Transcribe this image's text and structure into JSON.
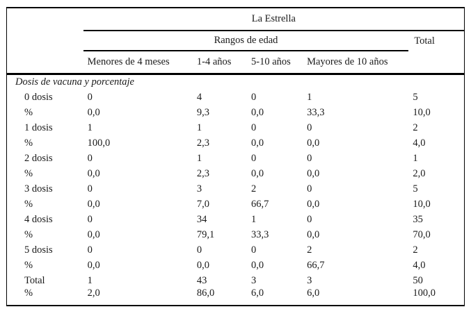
{
  "table": {
    "title": "La Estrella",
    "age_group_header": "Rangos de edad",
    "total_header": "Total",
    "columns": [
      "Menores de 4 meses",
      "1-4 años",
      "5-10 años",
      "Mayores de 10 años"
    ],
    "section_label": "Dosis de vacuna y porcentaje",
    "rows": [
      {
        "label": "0 dosis",
        "values": [
          "0",
          "4",
          "0",
          "1",
          "5"
        ]
      },
      {
        "label": "%",
        "values": [
          "0,0",
          "9,3",
          "0,0",
          "33,3",
          "10,0"
        ]
      },
      {
        "label": "1 dosis",
        "values": [
          "1",
          "1",
          "0",
          "0",
          "2"
        ]
      },
      {
        "label": "%",
        "values": [
          "100,0",
          "2,3",
          "0,0",
          "0,0",
          "4,0"
        ]
      },
      {
        "label": "2 dosis",
        "values": [
          "0",
          "1",
          "0",
          "0",
          "1"
        ]
      },
      {
        "label": "%",
        "values": [
          "0,0",
          "2,3",
          "0,0",
          "0,0",
          "2,0"
        ]
      },
      {
        "label": "3 dosis",
        "values": [
          "0",
          "3",
          "2",
          "0",
          "5"
        ]
      },
      {
        "label": "%",
        "values": [
          "0,0",
          "7,0",
          "66,7",
          "0,0",
          "10,0"
        ]
      },
      {
        "label": "4 dosis",
        "values": [
          "0",
          "34",
          "1",
          "0",
          "35"
        ]
      },
      {
        "label": "%",
        "values": [
          "0,0",
          "79,1",
          "33,3",
          "0,0",
          "70,0"
        ]
      },
      {
        "label": "5 dosis",
        "values": [
          "0",
          "0",
          "0",
          "2",
          "2"
        ]
      },
      {
        "label": "%",
        "values": [
          "0,0",
          "0,0",
          "0,0",
          "66,7",
          "4,0"
        ]
      },
      {
        "label": "Total",
        "values": [
          "1",
          "43",
          "3",
          "3",
          "50"
        ]
      },
      {
        "label": "%",
        "values": [
          "2,0",
          "86,0",
          "6,0",
          "6,0",
          "100,0"
        ]
      }
    ]
  },
  "colors": {
    "border": "#000000",
    "text": "#1a1a1a",
    "background": "#ffffff"
  }
}
